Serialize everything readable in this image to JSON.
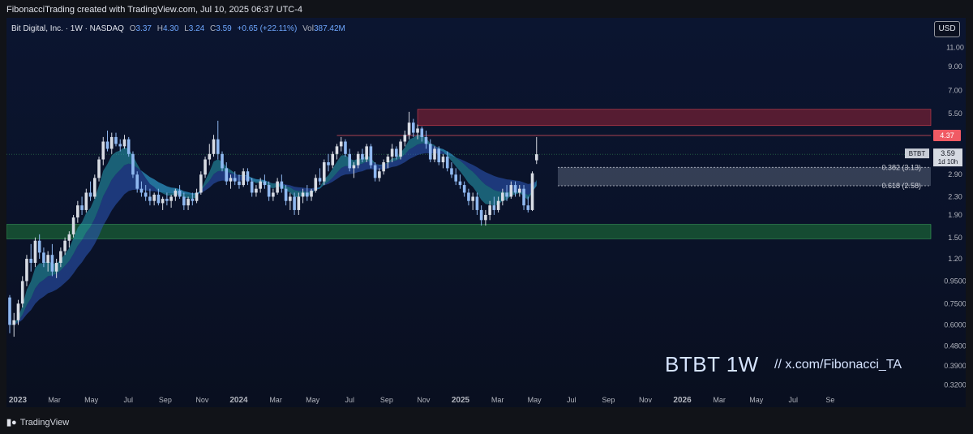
{
  "caption": "FibonacciTrading created with TradingView.com, Jul 10, 2025 06:37 UTC-4",
  "legend": {
    "symbol": "Bit Digital, Inc. · 1W · NASDAQ",
    "o_label": "O",
    "o": "3.37",
    "h_label": "H",
    "h": "4.30",
    "l_label": "L",
    "l": "3.24",
    "c_label": "C",
    "c": "3.59",
    "change": "+0.65 (+22.11%)",
    "vol_label": "Vol",
    "vol": "387.42M"
  },
  "currency_button": "USD",
  "watermark": "BTBT 1W",
  "handle": "//  x.com/Fibonacci_TA",
  "footer": "TradingView",
  "footer_icon": "tradingview-logo-icon",
  "colors": {
    "up": "#d7dbe3",
    "down": "#8fb8f0",
    "accent": "#2962ff",
    "red_zone": "#b2263a",
    "green_zone": "#1f7a3a"
  },
  "chart_data": {
    "type": "candlestick",
    "scale": "log",
    "ylim": [
      0.3,
      15
    ],
    "price_ticks": [
      "11.00",
      "9.00",
      "7.00",
      "5.50",
      "4.37",
      "3.59",
      "2.90",
      "2.30",
      "1.90",
      "1.50",
      "1.20",
      "0.9500",
      "0.7500",
      "0.6000",
      "0.4800",
      "0.3900",
      "0.3200"
    ],
    "price_tick_values": [
      11.0,
      9.0,
      7.0,
      5.5,
      4.37,
      3.59,
      2.9,
      2.3,
      1.9,
      1.5,
      1.2,
      0.95,
      0.75,
      0.6,
      0.48,
      0.39,
      0.32
    ],
    "x_ticks": [
      "2023",
      "Mar",
      "May",
      "Jul",
      "Sep",
      "Nov",
      "2024",
      "Mar",
      "May",
      "Jul",
      "Sep",
      "Nov",
      "2025",
      "Mar",
      "May",
      "Jul",
      "Sep",
      "Nov",
      "2026",
      "Mar",
      "May",
      "Jul",
      "Se"
    ],
    "x_tick_weeks": [
      0,
      8.6,
      17.3,
      26,
      34.7,
      43.4,
      52,
      60.7,
      69.4,
      78.1,
      86.8,
      95.5,
      104.2,
      112.9,
      121.6,
      130.3,
      139,
      147.7,
      156.4,
      165.1,
      173.8,
      182.5,
      191.2
    ],
    "last_price": {
      "symbol": "BTBT",
      "value": "3.59",
      "countdown": "1d 10h"
    },
    "resistance_label": "4.37",
    "fib_levels": [
      {
        "label": "0.382 (3.13)",
        "value": 3.13
      },
      {
        "label": "0.618 (2.58)",
        "value": 2.58
      }
    ],
    "zones": [
      {
        "name": "resistance",
        "from": 4.85,
        "to": 5.75
      },
      {
        "name": "support",
        "from": 1.48,
        "to": 1.72
      }
    ],
    "ohlc": [
      [
        0.8,
        0.82,
        0.55,
        0.6
      ],
      [
        0.6,
        0.68,
        0.53,
        0.63
      ],
      [
        0.63,
        0.78,
        0.6,
        0.75
      ],
      [
        0.75,
        1.0,
        0.72,
        0.95
      ],
      [
        0.95,
        1.25,
        0.9,
        1.2
      ],
      [
        1.2,
        1.4,
        1.05,
        1.15
      ],
      [
        1.15,
        1.5,
        1.1,
        1.45
      ],
      [
        1.45,
        1.55,
        1.2,
        1.28
      ],
      [
        1.28,
        1.35,
        1.1,
        1.15
      ],
      [
        1.15,
        1.3,
        1.05,
        1.25
      ],
      [
        1.25,
        1.4,
        1.0,
        1.05
      ],
      [
        1.05,
        1.2,
        0.98,
        1.15
      ],
      [
        1.15,
        1.35,
        1.1,
        1.3
      ],
      [
        1.3,
        1.5,
        1.25,
        1.45
      ],
      [
        1.45,
        1.6,
        1.35,
        1.55
      ],
      [
        1.55,
        1.9,
        1.5,
        1.85
      ],
      [
        1.85,
        2.2,
        1.75,
        2.1
      ],
      [
        2.1,
        2.3,
        1.9,
        2.0
      ],
      [
        2.0,
        2.5,
        1.95,
        2.4
      ],
      [
        2.4,
        2.7,
        2.2,
        2.3
      ],
      [
        2.3,
        2.9,
        2.25,
        2.8
      ],
      [
        2.8,
        3.5,
        2.7,
        3.4
      ],
      [
        3.4,
        4.3,
        3.2,
        4.1
      ],
      [
        4.1,
        4.6,
        3.7,
        3.8
      ],
      [
        3.8,
        4.5,
        3.6,
        4.3
      ],
      [
        4.3,
        4.5,
        3.9,
        4.0
      ],
      [
        4.0,
        4.2,
        3.7,
        3.9
      ],
      [
        3.9,
        4.4,
        3.8,
        4.2
      ],
      [
        4.2,
        4.3,
        3.5,
        3.6
      ],
      [
        3.6,
        3.7,
        2.8,
        2.9
      ],
      [
        2.9,
        3.0,
        2.4,
        2.5
      ],
      [
        2.5,
        2.7,
        2.3,
        2.4
      ],
      [
        2.4,
        2.6,
        2.2,
        2.3
      ],
      [
        2.3,
        2.5,
        2.1,
        2.2
      ],
      [
        2.2,
        2.4,
        2.1,
        2.35
      ],
      [
        2.35,
        2.5,
        2.1,
        2.15
      ],
      [
        2.15,
        2.3,
        2.0,
        2.25
      ],
      [
        2.25,
        2.4,
        2.1,
        2.2
      ],
      [
        2.2,
        2.35,
        2.05,
        2.3
      ],
      [
        2.3,
        2.5,
        2.2,
        2.45
      ],
      [
        2.45,
        2.6,
        2.25,
        2.3
      ],
      [
        2.3,
        2.4,
        2.0,
        2.1
      ],
      [
        2.1,
        2.3,
        2.0,
        2.25
      ],
      [
        2.25,
        2.4,
        2.1,
        2.2
      ],
      [
        2.2,
        2.5,
        2.15,
        2.4
      ],
      [
        2.4,
        3.0,
        2.35,
        2.9
      ],
      [
        2.9,
        3.5,
        2.8,
        3.4
      ],
      [
        3.4,
        4.0,
        3.2,
        3.6
      ],
      [
        3.6,
        4.4,
        3.5,
        4.2
      ],
      [
        4.2,
        5.1,
        3.4,
        3.6
      ],
      [
        3.6,
        3.7,
        3.0,
        3.1
      ],
      [
        3.1,
        3.3,
        2.6,
        2.7
      ],
      [
        2.7,
        2.9,
        2.5,
        2.8
      ],
      [
        2.8,
        3.0,
        2.6,
        2.7
      ],
      [
        2.7,
        2.9,
        2.5,
        2.6
      ],
      [
        2.6,
        3.1,
        2.55,
        3.0
      ],
      [
        3.0,
        3.1,
        2.6,
        2.7
      ],
      [
        2.7,
        2.8,
        2.3,
        2.4
      ],
      [
        2.4,
        2.6,
        2.3,
        2.5
      ],
      [
        2.5,
        2.8,
        2.4,
        2.7
      ],
      [
        2.7,
        2.9,
        2.5,
        2.6
      ],
      [
        2.6,
        2.7,
        2.2,
        2.3
      ],
      [
        2.3,
        2.5,
        2.2,
        2.4
      ],
      [
        2.4,
        2.8,
        2.35,
        2.7
      ],
      [
        2.7,
        2.9,
        2.4,
        2.5
      ],
      [
        2.5,
        2.6,
        2.1,
        2.2
      ],
      [
        2.2,
        2.4,
        2.0,
        2.3
      ],
      [
        2.3,
        2.4,
        1.9,
        2.0
      ],
      [
        2.0,
        2.4,
        1.9,
        2.3
      ],
      [
        2.3,
        2.5,
        2.15,
        2.4
      ],
      [
        2.4,
        2.6,
        2.2,
        2.3
      ],
      [
        2.3,
        2.5,
        2.2,
        2.45
      ],
      [
        2.45,
        2.9,
        2.4,
        2.8
      ],
      [
        2.8,
        3.1,
        2.6,
        2.7
      ],
      [
        2.7,
        3.4,
        2.6,
        3.3
      ],
      [
        3.3,
        3.6,
        3.0,
        3.2
      ],
      [
        3.2,
        3.7,
        3.1,
        3.6
      ],
      [
        3.6,
        4.0,
        3.4,
        3.9
      ],
      [
        3.9,
        4.3,
        3.7,
        4.1
      ],
      [
        4.1,
        4.2,
        3.5,
        3.6
      ],
      [
        3.6,
        3.8,
        3.0,
        3.1
      ],
      [
        3.1,
        3.3,
        2.8,
        3.2
      ],
      [
        3.2,
        3.7,
        3.1,
        3.6
      ],
      [
        3.6,
        3.8,
        3.3,
        3.4
      ],
      [
        3.4,
        4.0,
        3.3,
        3.9
      ],
      [
        3.9,
        4.0,
        3.1,
        3.2
      ],
      [
        3.2,
        3.3,
        2.7,
        2.8
      ],
      [
        2.8,
        3.1,
        2.7,
        3.0
      ],
      [
        3.0,
        3.4,
        2.9,
        3.3
      ],
      [
        3.3,
        3.6,
        3.1,
        3.5
      ],
      [
        3.5,
        4.0,
        3.3,
        3.8
      ],
      [
        3.8,
        3.9,
        3.4,
        3.5
      ],
      [
        3.5,
        4.2,
        3.4,
        4.1
      ],
      [
        4.1,
        4.6,
        3.9,
        4.4
      ],
      [
        4.4,
        5.6,
        4.2,
        5.0
      ],
      [
        5.0,
        5.2,
        4.3,
        4.5
      ],
      [
        4.5,
        4.9,
        4.2,
        4.7
      ],
      [
        4.7,
        4.8,
        4.1,
        4.3
      ],
      [
        4.3,
        4.6,
        3.8,
        4.0
      ],
      [
        4.0,
        4.2,
        3.3,
        3.4
      ],
      [
        3.4,
        3.9,
        3.3,
        3.8
      ],
      [
        3.8,
        3.9,
        3.2,
        3.3
      ],
      [
        3.3,
        3.6,
        3.1,
        3.5
      ],
      [
        3.5,
        3.7,
        3.0,
        3.1
      ],
      [
        3.1,
        3.3,
        2.8,
        2.9
      ],
      [
        2.9,
        3.1,
        2.6,
        2.7
      ],
      [
        2.7,
        2.9,
        2.5,
        2.6
      ],
      [
        2.6,
        2.7,
        2.3,
        2.4
      ],
      [
        2.4,
        2.5,
        2.1,
        2.2
      ],
      [
        2.2,
        2.4,
        2.0,
        2.3
      ],
      [
        2.3,
        2.4,
        1.9,
        2.0
      ],
      [
        2.0,
        2.1,
        1.7,
        1.8
      ],
      [
        1.8,
        2.0,
        1.7,
        1.9
      ],
      [
        1.9,
        2.2,
        1.8,
        2.1
      ],
      [
        2.1,
        2.3,
        1.9,
        2.0
      ],
      [
        2.0,
        2.3,
        1.95,
        2.2
      ],
      [
        2.2,
        2.5,
        2.1,
        2.4
      ],
      [
        2.4,
        2.6,
        2.2,
        2.3
      ],
      [
        2.3,
        2.7,
        2.25,
        2.6
      ],
      [
        2.6,
        2.7,
        2.3,
        2.4
      ],
      [
        2.4,
        2.6,
        2.3,
        2.5
      ],
      [
        2.5,
        2.6,
        2.0,
        2.1
      ],
      [
        2.1,
        2.3,
        1.95,
        2.0
      ],
      [
        2.0,
        3.0,
        1.98,
        2.94
      ],
      [
        3.37,
        4.3,
        3.24,
        3.59
      ]
    ]
  }
}
